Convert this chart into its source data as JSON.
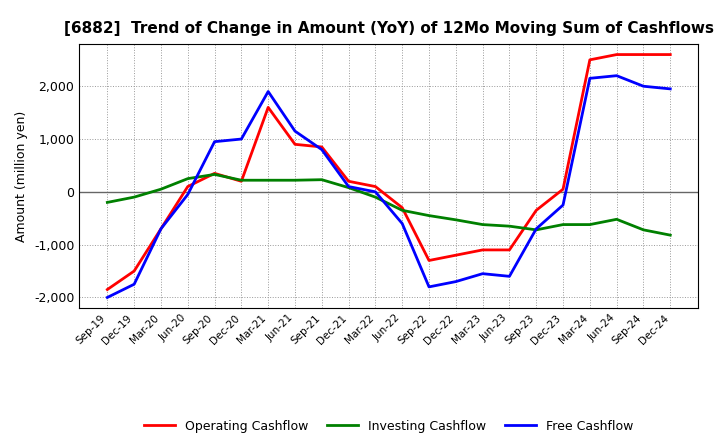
{
  "title": "[6882]  Trend of Change in Amount (YoY) of 12Mo Moving Sum of Cashflows",
  "ylabel": "Amount (million yen)",
  "x_labels": [
    "Sep-19",
    "Dec-19",
    "Mar-20",
    "Jun-20",
    "Sep-20",
    "Dec-20",
    "Mar-21",
    "Jun-21",
    "Sep-21",
    "Dec-21",
    "Mar-22",
    "Jun-22",
    "Sep-22",
    "Dec-22",
    "Mar-23",
    "Jun-23",
    "Sep-23",
    "Dec-23",
    "Mar-24",
    "Jun-24",
    "Sep-24",
    "Dec-24"
  ],
  "operating_cashflow": [
    -1850,
    -1500,
    -700,
    100,
    350,
    200,
    1600,
    900,
    850,
    200,
    100,
    -300,
    -1300,
    -1200,
    -1100,
    -1100,
    -350,
    50,
    2500,
    2600,
    2600,
    2600
  ],
  "investing_cashflow": [
    -200,
    -100,
    50,
    250,
    330,
    220,
    220,
    220,
    230,
    80,
    -100,
    -350,
    -450,
    -530,
    -620,
    -650,
    -720,
    -620,
    -620,
    -520,
    -720,
    -820
  ],
  "free_cashflow": [
    -2000,
    -1750,
    -700,
    -50,
    950,
    1000,
    1900,
    1150,
    800,
    100,
    0,
    -600,
    -1800,
    -1700,
    -1550,
    -1600,
    -700,
    -250,
    2150,
    2200,
    2000,
    1950
  ],
  "ylim": [
    -2200,
    2800
  ],
  "yticks": [
    -2000,
    -1000,
    0,
    1000,
    2000
  ],
  "line_colors": {
    "operating": "#ff0000",
    "investing": "#008000",
    "free": "#0000ff"
  },
  "line_width": 2.0,
  "background_color": "#ffffff",
  "grid_color": "#999999",
  "zero_line_color": "#666666"
}
